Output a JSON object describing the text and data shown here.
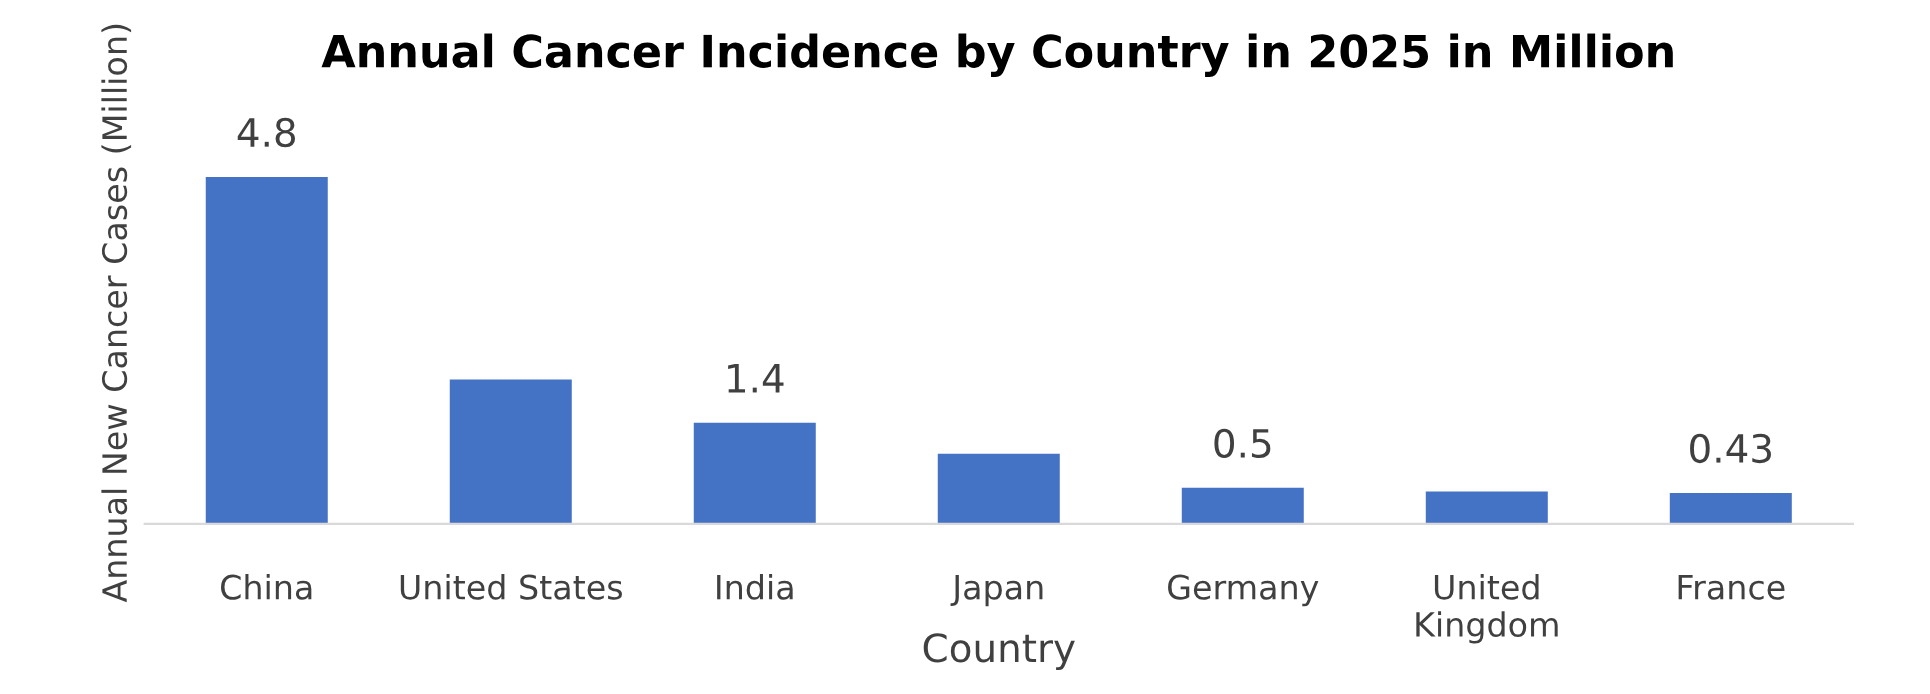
{
  "chart_data": {
    "type": "bar",
    "title": "Annual Cancer Incidence by Country in 2025 in Million",
    "xlabel": "Country",
    "ylabel": "Annual New Cancer Cases (Million)",
    "categories": [
      "China",
      "United States",
      "India",
      "Japan",
      "Germany",
      "United Kingdom",
      "France"
    ],
    "values": [
      4.8,
      2.0,
      1.4,
      0.97,
      0.5,
      0.45,
      0.43
    ],
    "value_labels": [
      "4.8",
      null,
      "1.4",
      null,
      "0.5",
      null,
      "0.43"
    ],
    "color": "#4472c4",
    "grid": false,
    "legend": false
  }
}
